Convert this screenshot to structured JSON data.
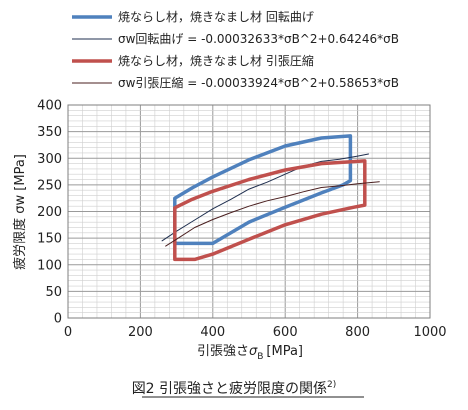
{
  "chart_data": {
    "type": "line",
    "title": "",
    "xlabel": "引張強さ",
    "xlabel_symbol": "σ",
    "xlabel_subscript": "B",
    "xlabel_unit": "[MPa]",
    "ylabel": "疲労限度 σw [MPa]",
    "xlim": [
      0,
      1000
    ],
    "ylim": [
      0,
      400
    ],
    "x_ticks": [
      0,
      200,
      400,
      600,
      800,
      1000
    ],
    "y_ticks": [
      0,
      50,
      100,
      150,
      200,
      250,
      300,
      350,
      400
    ],
    "grid": true,
    "legend_position": "top",
    "caption": "図2  引張強さと疲労限度の関係",
    "caption_ref": "2)",
    "series": [
      {
        "name": "焼ならし材，焼きなまし材 回転曲げ",
        "style": "band",
        "color": "#4f81bd",
        "x": [
          295,
          295,
          345,
          400,
          500,
          600,
          700,
          780,
          780,
          760,
          700,
          600,
          500,
          400,
          295
        ],
        "y": [
          140,
          225,
          245,
          265,
          297,
          323,
          338,
          342,
          258,
          250,
          235,
          208,
          180,
          140,
          140
        ]
      },
      {
        "name": "σw回転曲げ = -0.00032633*σB^2+0.64246*σB",
        "style": "thin",
        "color": "#1f2f4f",
        "x": [
          260,
          300,
          350,
          400,
          450,
          500,
          550,
          600,
          650,
          700,
          750,
          800,
          830
        ],
        "y": [
          145,
          163,
          184,
          205,
          223,
          242,
          255,
          270,
          285,
          294,
          298,
          304,
          308
        ]
      },
      {
        "name": "焼ならし材，焼きなまし材 引張圧縮",
        "style": "band",
        "color": "#c0504d",
        "x": [
          295,
          295,
          340,
          400,
          500,
          600,
          700,
          820,
          820,
          790,
          700,
          600,
          500,
          400,
          350,
          295
        ],
        "y": [
          110,
          207,
          222,
          238,
          260,
          278,
          290,
          295,
          212,
          208,
          195,
          175,
          148,
          120,
          110,
          110
        ]
      },
      {
        "name": "σw引張圧縮 = -0.00033924*σB^2+0.58653*σB",
        "style": "thin",
        "color": "#4a1f1f",
        "x": [
          270,
          300,
          350,
          400,
          450,
          500,
          550,
          600,
          650,
          700,
          750,
          800,
          860
        ],
        "y": [
          135,
          148,
          170,
          185,
          198,
          210,
          220,
          228,
          237,
          245,
          248,
          252,
          256
        ]
      }
    ]
  }
}
